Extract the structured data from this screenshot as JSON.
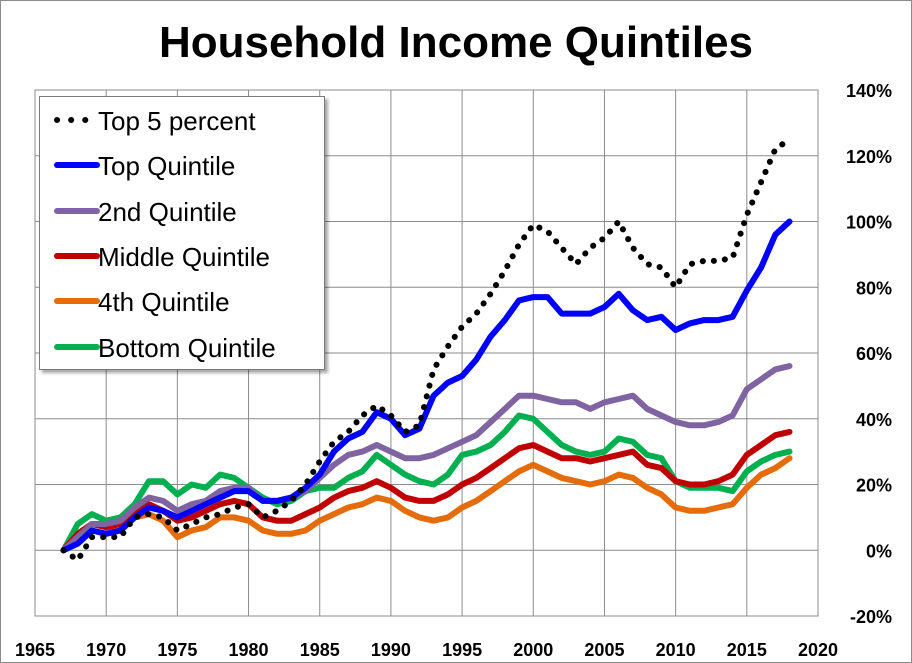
{
  "chart_data": {
    "type": "line",
    "title": "Household Income Quintiles",
    "xlim": [
      1965,
      2020
    ],
    "ylim": [
      -20,
      140
    ],
    "x_ticks": [
      1965,
      1970,
      1975,
      1980,
      1985,
      1990,
      1995,
      2000,
      2005,
      2010,
      2015,
      2020
    ],
    "y_ticks": [
      -20,
      0,
      20,
      40,
      60,
      80,
      100,
      120,
      140
    ],
    "y_tick_labels": [
      "-20%",
      "0%",
      "20%",
      "40%",
      "60%",
      "80%",
      "100%",
      "120%",
      "140%"
    ],
    "y_axis_side": "right",
    "grid": true,
    "legend_position": "top-left",
    "x": [
      1967,
      1968,
      1969,
      1970,
      1971,
      1972,
      1973,
      1974,
      1975,
      1976,
      1977,
      1978,
      1979,
      1980,
      1981,
      1982,
      1983,
      1984,
      1985,
      1986,
      1987,
      1988,
      1989,
      1990,
      1991,
      1992,
      1993,
      1994,
      1995,
      1996,
      1997,
      1998,
      1999,
      2000,
      2001,
      2002,
      2003,
      2004,
      2005,
      2006,
      2007,
      2008,
      2009,
      2010,
      2011,
      2012,
      2013,
      2014,
      2015,
      2016,
      2017,
      2018
    ],
    "series": [
      {
        "name": "Top 5 percent",
        "color": "#000000",
        "style": "dotted",
        "values": [
          0,
          -3,
          4,
          4,
          4,
          10,
          11,
          10,
          6,
          8,
          10,
          11,
          13,
          14,
          10,
          12,
          15,
          20,
          27,
          33,
          36,
          41,
          44,
          41,
          36,
          38,
          55,
          62,
          68,
          72,
          78,
          85,
          93,
          99,
          97,
          92,
          87,
          92,
          95,
          100,
          92,
          87,
          86,
          80,
          87,
          88,
          88,
          89,
          102,
          112,
          122,
          125
        ]
      },
      {
        "name": "Top Quintile",
        "color": "#0000ff",
        "style": "solid",
        "values": [
          0,
          2,
          6,
          5,
          6,
          10,
          13,
          12,
          10,
          12,
          14,
          16,
          18,
          18,
          15,
          15,
          16,
          19,
          23,
          30,
          34,
          36,
          42,
          40,
          35,
          37,
          47,
          51,
          53,
          58,
          65,
          70,
          76,
          77,
          77,
          72,
          72,
          72,
          74,
          78,
          73,
          70,
          71,
          67,
          69,
          70,
          70,
          71,
          79,
          86,
          96,
          100
        ]
      },
      {
        "name": "2nd Quintile",
        "color": "#8064a2",
        "style": "solid",
        "values": [
          0,
          4,
          8,
          8,
          9,
          13,
          16,
          15,
          12,
          14,
          15,
          18,
          19,
          19,
          15,
          15,
          16,
          18,
          22,
          26,
          29,
          30,
          32,
          30,
          28,
          28,
          29,
          31,
          33,
          35,
          39,
          43,
          47,
          47,
          46,
          45,
          45,
          43,
          45,
          46,
          47,
          43,
          41,
          39,
          38,
          38,
          39,
          41,
          49,
          52,
          55,
          56
        ]
      },
      {
        "name": "Middle Quintile",
        "color": "#c00000",
        "style": "solid",
        "values": [
          0,
          5,
          8,
          7,
          8,
          11,
          14,
          12,
          9,
          10,
          12,
          14,
          15,
          14,
          10,
          9,
          9,
          11,
          13,
          16,
          18,
          19,
          21,
          19,
          16,
          15,
          15,
          17,
          20,
          22,
          25,
          28,
          31,
          32,
          30,
          28,
          28,
          27,
          28,
          29,
          30,
          26,
          25,
          21,
          20,
          20,
          21,
          23,
          29,
          32,
          35,
          36
        ]
      },
      {
        "name": "4th Quintile",
        "color": "#e46c0a",
        "style": "solid",
        "values": [
          0,
          5,
          8,
          7,
          7,
          10,
          11,
          9,
          4,
          6,
          7,
          10,
          10,
          9,
          6,
          5,
          5,
          6,
          9,
          11,
          13,
          14,
          16,
          15,
          12,
          10,
          9,
          10,
          13,
          15,
          18,
          21,
          24,
          26,
          24,
          22,
          21,
          20,
          21,
          23,
          22,
          19,
          17,
          13,
          12,
          12,
          13,
          14,
          19,
          23,
          25,
          28
        ]
      },
      {
        "name": "Bottom Quintile",
        "color": "#00b050",
        "style": "solid",
        "values": [
          0,
          8,
          11,
          9,
          10,
          14,
          21,
          21,
          17,
          20,
          19,
          23,
          22,
          19,
          16,
          14,
          15,
          18,
          19,
          19,
          22,
          24,
          29,
          26,
          23,
          21,
          20,
          23,
          29,
          30,
          32,
          36,
          41,
          40,
          36,
          32,
          30,
          29,
          30,
          34,
          33,
          29,
          28,
          21,
          19,
          19,
          19,
          18,
          24,
          27,
          29,
          30
        ]
      }
    ]
  }
}
